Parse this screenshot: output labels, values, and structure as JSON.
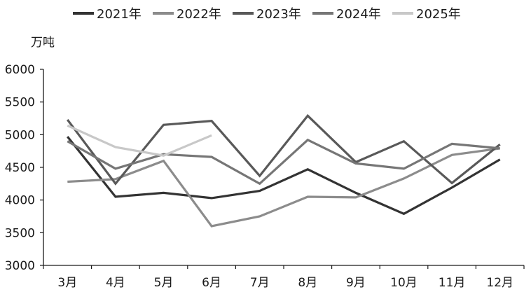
{
  "chart_data": {
    "type": "line",
    "title": "",
    "xlabel": "",
    "ylabel": "万吨",
    "ylim": [
      3000,
      6000
    ],
    "yticks": [
      3000,
      3500,
      4000,
      4500,
      5000,
      5500,
      6000
    ],
    "categories": [
      "3月",
      "4月",
      "5月",
      "6月",
      "7月",
      "8月",
      "9月",
      "10月",
      "11月",
      "12月"
    ],
    "legend_position": "top",
    "grid": false,
    "series": [
      {
        "name": "2021年",
        "color": "#333333",
        "values": [
          4970,
          4050,
          4110,
          4030,
          4140,
          4470,
          4110,
          3790,
          4190,
          4620
        ]
      },
      {
        "name": "2022年",
        "color": "#8c8c8c",
        "values": [
          4280,
          4320,
          4600,
          3600,
          3750,
          4050,
          4040,
          4330,
          4690,
          4790
        ]
      },
      {
        "name": "2023年",
        "color": "#595959",
        "values": [
          5230,
          4250,
          5150,
          5210,
          4370,
          5290,
          4580,
          4900,
          4260,
          4850
        ]
      },
      {
        "name": "2024年",
        "color": "#767676",
        "values": [
          4900,
          4480,
          4700,
          4660,
          4250,
          4920,
          4560,
          4480,
          4860,
          4790
        ]
      },
      {
        "name": "2025年",
        "color": "#c8c8c8",
        "values": [
          5140,
          4810,
          4680,
          4990,
          null,
          null,
          null,
          null,
          null,
          null
        ]
      }
    ]
  }
}
